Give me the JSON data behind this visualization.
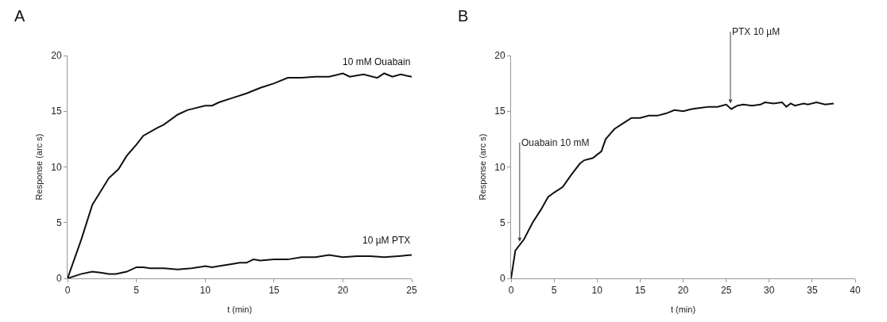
{
  "chart_data": [
    {
      "type": "line",
      "title": "A",
      "xlabel": "t (min)",
      "ylabel": "Response (arc s)",
      "xlim": [
        0,
        25
      ],
      "xticks": [
        0,
        5,
        10,
        15,
        20,
        25
      ],
      "ylim": [
        0,
        20
      ],
      "yticks": [
        0,
        5,
        10,
        15,
        20
      ],
      "grid": false,
      "legend": false,
      "marker": "none",
      "line_style": "solid",
      "series": [
        {
          "name": "10 mM Ouabain",
          "color": "#111111",
          "x": [
            0,
            1,
            1.8,
            3,
            3.7,
            4.3,
            5,
            5.5,
            6.5,
            7,
            8,
            8.7,
            10,
            10.5,
            11,
            12,
            13,
            14,
            15,
            16,
            17,
            18,
            19,
            20,
            20.5,
            21.5,
            22.5,
            23,
            23.6,
            24.2,
            25
          ],
          "values": [
            0,
            3.5,
            6.6,
            9,
            9.8,
            11,
            12,
            12.8,
            13.5,
            13.8,
            14.7,
            15.1,
            15.5,
            15.5,
            15.8,
            16.2,
            16.6,
            17.1,
            17.5,
            18,
            18,
            18.1,
            18.1,
            18.4,
            18.1,
            18.3,
            18,
            18.4,
            18.1,
            18.3,
            18.1
          ]
        },
        {
          "name": "10 µM PTX",
          "color": "#111111",
          "x": [
            0,
            1,
            1.8,
            2.5,
            3,
            3.5,
            4.3,
            5,
            5.5,
            6,
            7,
            8,
            9,
            10,
            10.5,
            11,
            12,
            12.5,
            13,
            13.5,
            14,
            15,
            16,
            17,
            18,
            19,
            20,
            21,
            22,
            23,
            24,
            25
          ],
          "values": [
            0,
            0.4,
            0.6,
            0.5,
            0.4,
            0.4,
            0.6,
            1,
            1,
            0.9,
            0.9,
            0.8,
            0.9,
            1.1,
            1,
            1.1,
            1.3,
            1.4,
            1.4,
            1.7,
            1.6,
            1.7,
            1.7,
            1.9,
            1.9,
            2.1,
            1.9,
            2,
            2,
            1.9,
            2,
            2.1
          ]
        }
      ]
    },
    {
      "type": "line",
      "title": "B",
      "xlabel": "t (min)",
      "ylabel": "Response (arc s)",
      "xlim": [
        0,
        40
      ],
      "xticks": [
        0,
        5,
        10,
        15,
        20,
        25,
        30,
        35,
        40
      ],
      "ylim": [
        0,
        20
      ],
      "yticks": [
        0,
        5,
        10,
        15,
        20
      ],
      "grid": false,
      "legend": false,
      "marker": "none",
      "line_style": "solid",
      "annotations": [
        {
          "text": "Ouabain 10 mM",
          "x": 1,
          "y": 3.3
        },
        {
          "text": "PTX 10 µM",
          "x": 25.5,
          "y": 15.7
        }
      ],
      "series": [
        {
          "color": "#111111",
          "x": [
            0,
            0.5,
            1.5,
            2.5,
            3.5,
            4.3,
            5,
            6,
            7,
            8,
            8.5,
            9.5,
            10.5,
            11,
            12,
            13,
            14,
            15,
            16,
            17,
            18,
            19,
            20,
            21,
            22,
            23,
            24,
            25,
            25.6,
            26.3,
            27,
            28,
            29,
            29.5,
            30.5,
            31.5,
            32,
            32.5,
            33,
            34,
            34.5,
            35.5,
            36.5,
            37.5
          ],
          "values": [
            0,
            2.5,
            3.5,
            5,
            6.2,
            7.3,
            7.7,
            8.2,
            9.3,
            10.3,
            10.6,
            10.8,
            11.4,
            12.5,
            13.4,
            13.9,
            14.4,
            14.4,
            14.6,
            14.6,
            14.8,
            15.1,
            15,
            15.2,
            15.3,
            15.4,
            15.4,
            15.6,
            15.2,
            15.5,
            15.6,
            15.5,
            15.6,
            15.8,
            15.7,
            15.8,
            15.4,
            15.7,
            15.5,
            15.7,
            15.6,
            15.8,
            15.6,
            15.7
          ]
        }
      ]
    }
  ]
}
